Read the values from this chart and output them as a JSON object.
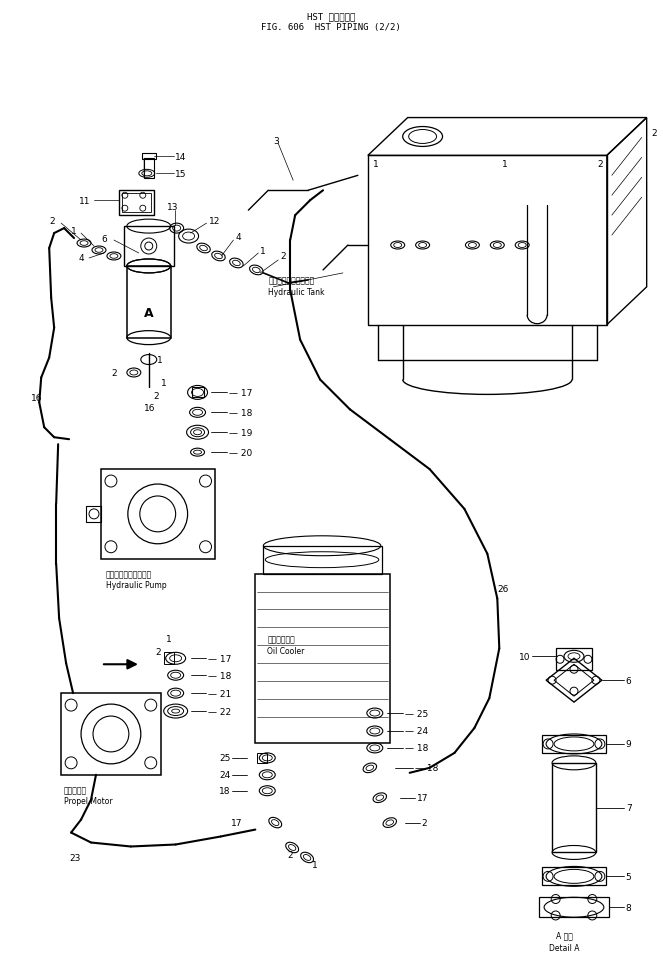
{
  "title_line1": "HST パイピング",
  "title_line2": "FIG. 606  HST PIPING (2/2)",
  "bg_color": "#ffffff",
  "line_color": "#000000",
  "labels": {
    "hydraulic_tank_jp": "ハイドロリックタンク",
    "hydraulic_tank_en": "Hydraulic Tank",
    "hydraulic_pump_jp": "ハイドロリックポンプ",
    "hydraulic_pump_en": "Hydraulic Pump",
    "oil_cooler_jp": "オイルクーラ",
    "oil_cooler_en": "Oil Cooler",
    "propel_motor_jp": "走行モータ",
    "propel_motor_en": "Propel Motor",
    "detail_a_jp": "A 詳細",
    "detail_a_en": "Detail A"
  },
  "fig_width": 6.63,
  "fig_height": 9.79
}
